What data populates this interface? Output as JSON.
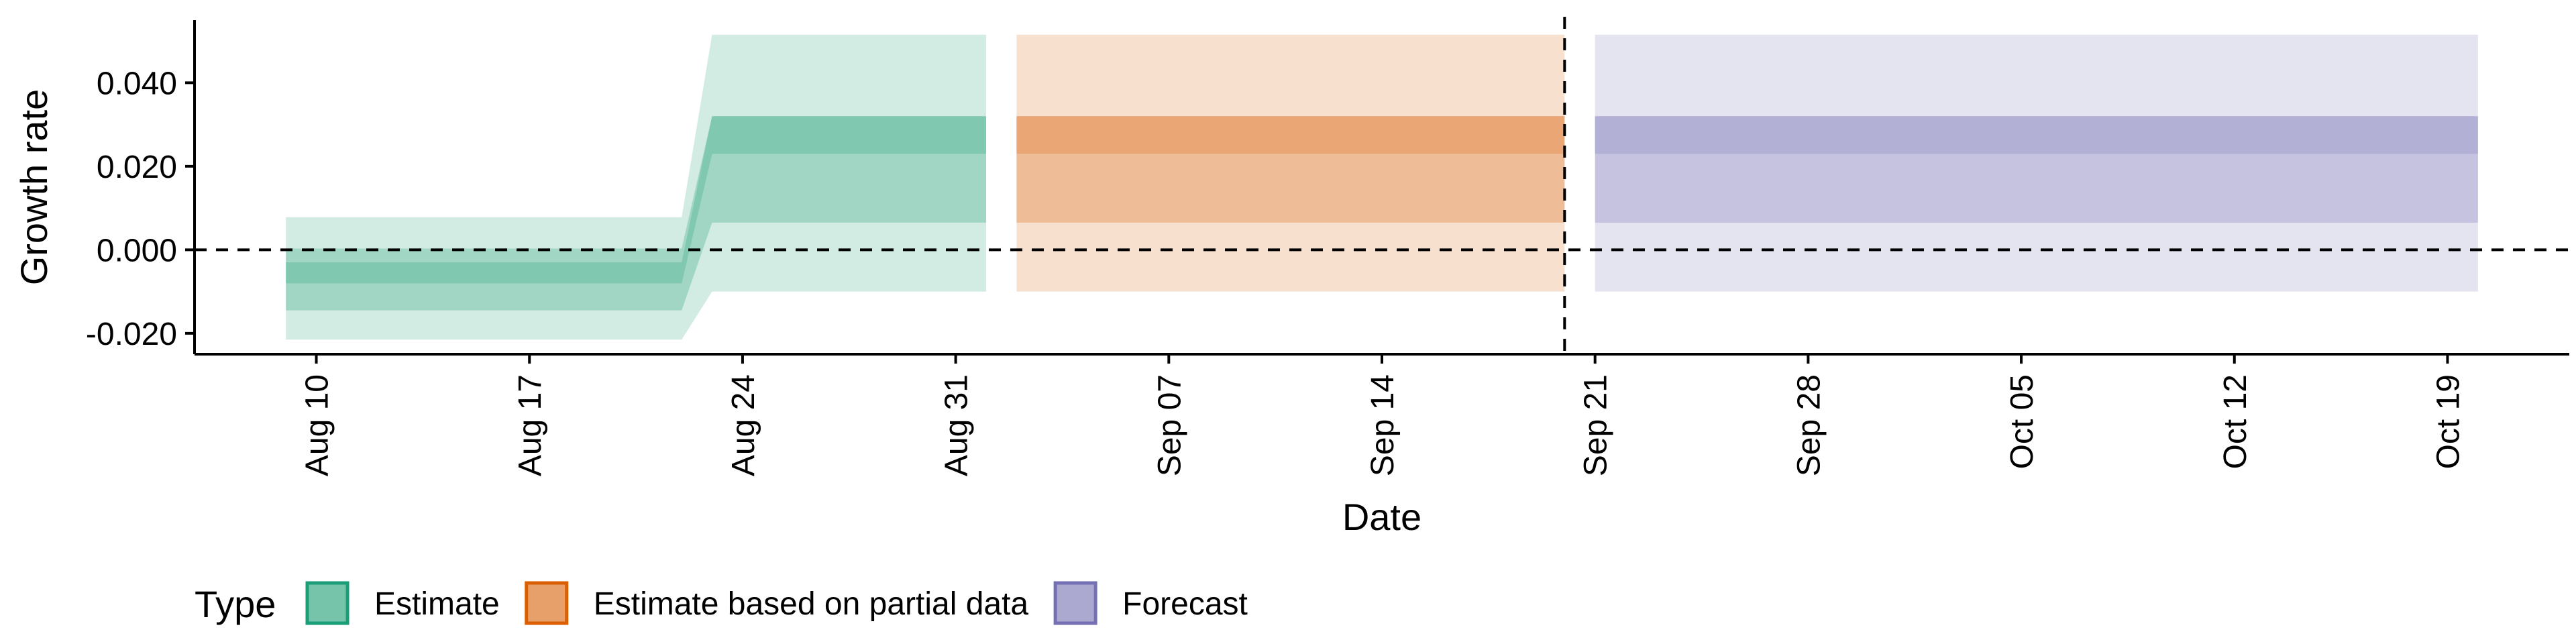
{
  "chart_data": {
    "type": "area",
    "xlabel": "Date",
    "ylabel": "Growth rate",
    "x_axis": {
      "type": "date",
      "range": [
        "2020-08-06",
        "2020-10-23"
      ],
      "ticks": [
        "2020-08-10",
        "2020-08-17",
        "2020-08-24",
        "2020-08-31",
        "2020-09-07",
        "2020-09-14",
        "2020-09-21",
        "2020-09-28",
        "2020-10-05",
        "2020-10-12",
        "2020-10-19"
      ],
      "tick_labels": [
        "Aug 10",
        "Aug 17",
        "Aug 24",
        "Aug 31",
        "Sep 07",
        "Sep 14",
        "Sep 21",
        "Sep 28",
        "Oct 05",
        "Oct 12",
        "Oct 19"
      ]
    },
    "y_axis": {
      "range": [
        -0.025,
        0.055
      ],
      "ticks": [
        -0.02,
        0.0,
        0.02,
        0.04
      ],
      "tick_labels": [
        "-0.020",
        "0.000",
        "0.020",
        "0.040"
      ]
    },
    "reference_lines": {
      "horizontal_y": 0.0,
      "vertical_date": "2020-09-20"
    },
    "grid": false,
    "legend": {
      "title": "Type",
      "position": "bottom-left",
      "entries": [
        "Estimate",
        "Estimate based on partial data",
        "Forecast"
      ]
    },
    "series": [
      {
        "name": "Estimate",
        "color": "#1b9e77",
        "fill": "#76c4aa",
        "points": [
          {
            "date": "2020-08-09",
            "outer": [
              -0.0215,
              0.0078
            ],
            "middle": [
              -0.0145,
              0.0003
            ],
            "inner": [
              -0.008,
              -0.003
            ]
          },
          {
            "date": "2020-08-22",
            "outer": [
              -0.0215,
              0.0078
            ],
            "middle": [
              -0.0145,
              0.0003
            ],
            "inner": [
              -0.008,
              -0.003
            ]
          },
          {
            "date": "2020-08-23",
            "outer": [
              -0.01,
              0.0515
            ],
            "middle": [
              0.0065,
              0.032
            ],
            "inner": [
              0.023,
              0.032
            ]
          },
          {
            "date": "2020-09-01",
            "outer": [
              -0.01,
              0.0515
            ],
            "middle": [
              0.0065,
              0.032
            ],
            "inner": [
              0.023,
              0.032
            ]
          }
        ]
      },
      {
        "name": "Estimate based on partial data",
        "color": "#d95f02",
        "fill": "#e8a06a",
        "points": [
          {
            "date": "2020-09-02",
            "outer": [
              -0.01,
              0.0515
            ],
            "middle": [
              0.0065,
              0.032
            ],
            "inner": [
              0.023,
              0.032
            ]
          },
          {
            "date": "2020-09-20",
            "outer": [
              -0.01,
              0.0515
            ],
            "middle": [
              0.0065,
              0.032
            ],
            "inner": [
              0.023,
              0.032
            ]
          }
        ]
      },
      {
        "name": "Forecast",
        "color": "#7570b3",
        "fill": "#aca9d1",
        "points": [
          {
            "date": "2020-09-21",
            "outer": [
              -0.01,
              0.0515
            ],
            "middle": [
              0.0065,
              0.032
            ],
            "inner": [
              0.023,
              0.032
            ]
          },
          {
            "date": "2020-10-20",
            "outer": [
              -0.01,
              0.0515
            ],
            "middle": [
              0.0065,
              0.032
            ],
            "inner": [
              0.023,
              0.032
            ]
          }
        ]
      }
    ]
  }
}
